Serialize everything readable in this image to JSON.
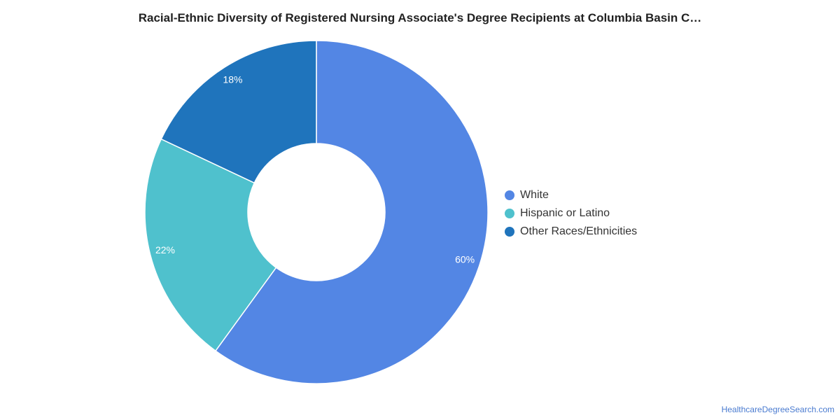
{
  "chart_data": {
    "type": "pie",
    "title": "Racial-Ethnic Diversity of Registered Nursing Associate's Degree Recipients at Columbia Basin C…",
    "donut": true,
    "legend_position": "right",
    "slices": [
      {
        "label": "White",
        "value": 60,
        "display": "60%",
        "color": "#5386e4"
      },
      {
        "label": "Hispanic or Latino",
        "value": 22,
        "display": "22%",
        "color": "#4fc1cd"
      },
      {
        "label": "Other Races/Ethnicities",
        "value": 18,
        "display": "18%",
        "color": "#1f74bc"
      }
    ]
  },
  "footer": {
    "source": "HealthcareDegreeSearch.com"
  }
}
